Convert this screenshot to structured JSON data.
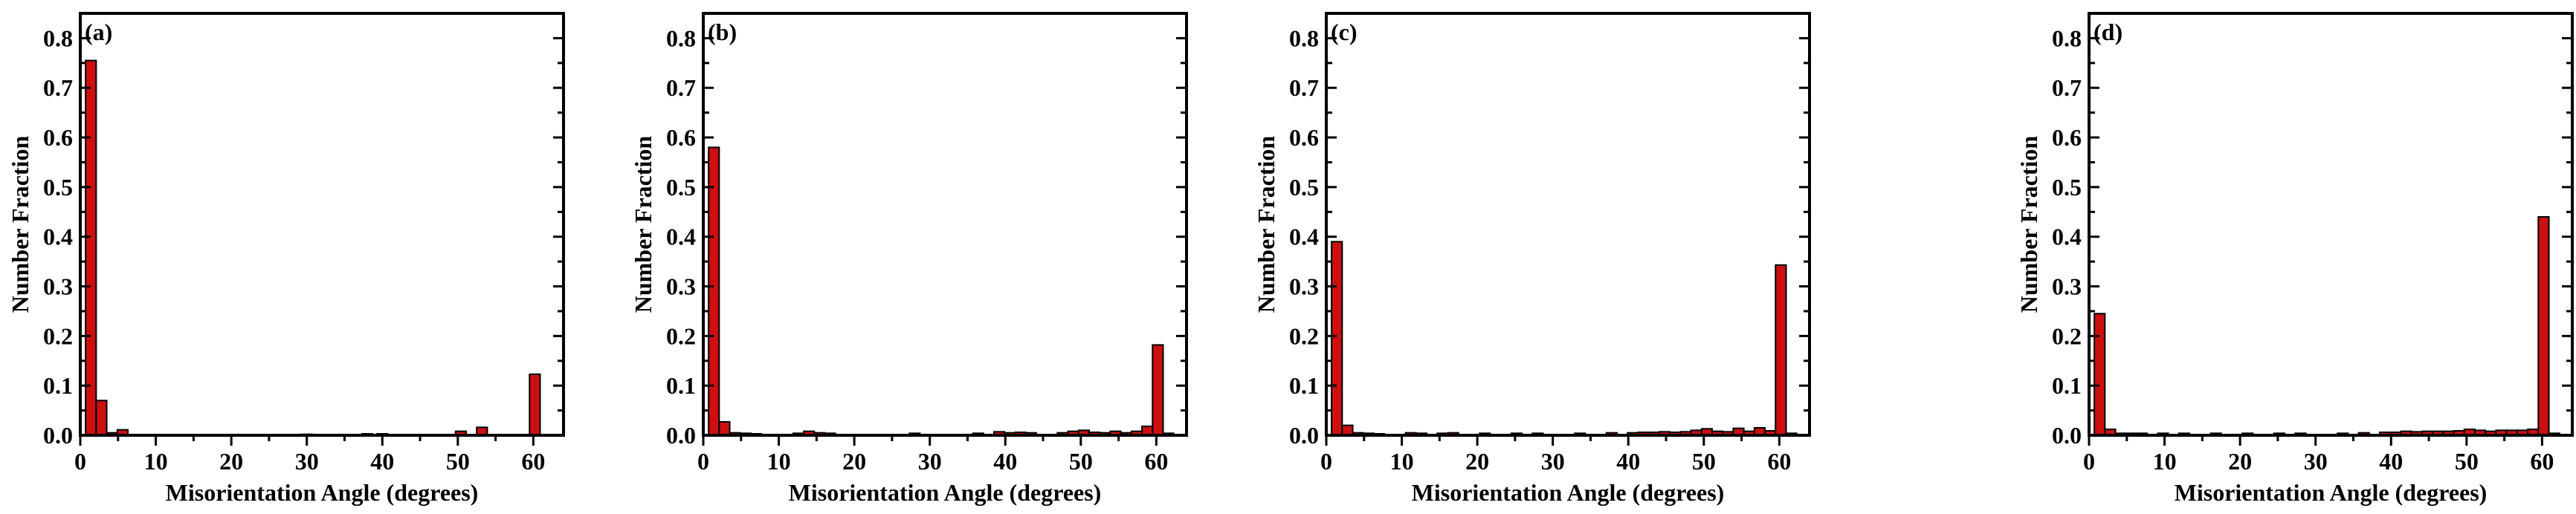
{
  "colors": {
    "bar_fill": "#cc1010",
    "bar_stroke": "#000000",
    "axis": "#000000"
  },
  "chart_data": [
    {
      "type": "bar",
      "panel_label": "(a)",
      "xlabel": "Misorientation Angle (degrees)",
      "ylabel": "Number Fraction",
      "xlim": [
        0,
        64
      ],
      "ylim": [
        0,
        0.85
      ],
      "xticks": [
        0,
        10,
        20,
        30,
        40,
        50,
        60
      ],
      "yticks": [
        0.0,
        0.1,
        0.2,
        0.3,
        0.4,
        0.5,
        0.6,
        0.7,
        0.8
      ],
      "ytick_labels": [
        "0.0",
        "0.1",
        "0.2",
        "0.3",
        "0.4",
        "0.5",
        "0.6",
        "0.7",
        "0.8"
      ],
      "bin_width": 1.4,
      "x": [
        1.4,
        2.8,
        4.2,
        5.6,
        30,
        38,
        40,
        50.4,
        53.2,
        60.2
      ],
      "values": [
        0.755,
        0.07,
        0.005,
        0.011,
        0.002,
        0.003,
        0.003,
        0.008,
        0.016,
        0.123
      ]
    },
    {
      "type": "bar",
      "panel_label": "(b)",
      "xlabel": "Misorientation Angle (degrees)",
      "ylabel": "Number Fraction",
      "xlim": [
        0,
        64
      ],
      "ylim": [
        0,
        0.85
      ],
      "xticks": [
        0,
        10,
        20,
        30,
        40,
        50,
        60
      ],
      "yticks": [
        0.0,
        0.1,
        0.2,
        0.3,
        0.4,
        0.5,
        0.6,
        0.7,
        0.8
      ],
      "ytick_labels": [
        "0.0",
        "0.1",
        "0.2",
        "0.3",
        "0.4",
        "0.5",
        "0.6",
        "0.7",
        "0.8"
      ],
      "bin_width": 1.4,
      "x": [
        1.4,
        2.8,
        4.2,
        5.6,
        7.0,
        12.6,
        14.0,
        15.4,
        16.8,
        28.0,
        36.4,
        39.2,
        40.6,
        42.0,
        43.4,
        47.6,
        49.0,
        50.4,
        51.8,
        53.2,
        54.6,
        56.0,
        57.4,
        58.8,
        60.2,
        61.6
      ],
      "values": [
        0.58,
        0.027,
        0.005,
        0.004,
        0.003,
        0.004,
        0.008,
        0.005,
        0.004,
        0.004,
        0.004,
        0.007,
        0.005,
        0.006,
        0.005,
        0.005,
        0.008,
        0.01,
        0.006,
        0.005,
        0.008,
        0.005,
        0.008,
        0.018,
        0.182,
        0.004
      ]
    },
    {
      "type": "bar",
      "panel_label": "(c)",
      "xlabel": "Misorientation Angle (degrees)",
      "ylabel": "Number Fraction",
      "xlim": [
        0,
        64
      ],
      "ylim": [
        0,
        0.85
      ],
      "xticks": [
        0,
        10,
        20,
        30,
        40,
        50,
        60
      ],
      "yticks": [
        0.0,
        0.1,
        0.2,
        0.3,
        0.4,
        0.5,
        0.6,
        0.7,
        0.8
      ],
      "ytick_labels": [
        "0.0",
        "0.1",
        "0.2",
        "0.3",
        "0.4",
        "0.5",
        "0.6",
        "0.7",
        "0.8"
      ],
      "bin_width": 1.4,
      "x": [
        1.4,
        2.8,
        4.2,
        5.6,
        7.0,
        11.2,
        12.6,
        15.4,
        16.8,
        21.0,
        25.2,
        28.0,
        33.6,
        37.8,
        40.6,
        42.0,
        43.4,
        44.8,
        46.2,
        47.6,
        49.0,
        50.4,
        51.8,
        53.2,
        54.6,
        56.0,
        57.4,
        58.8,
        60.2,
        61.6
      ],
      "values": [
        0.39,
        0.02,
        0.005,
        0.004,
        0.003,
        0.005,
        0.004,
        0.004,
        0.005,
        0.004,
        0.004,
        0.004,
        0.004,
        0.005,
        0.005,
        0.006,
        0.006,
        0.007,
        0.006,
        0.007,
        0.01,
        0.013,
        0.008,
        0.007,
        0.014,
        0.008,
        0.015,
        0.009,
        0.343,
        0.004
      ]
    },
    {
      "type": "bar",
      "panel_label": "(d)",
      "xlabel": "Misorientation Angle (degrees)",
      "ylabel": "Number Fraction",
      "xlim": [
        0,
        64
      ],
      "ylim": [
        0,
        0.85
      ],
      "xticks": [
        0,
        10,
        20,
        30,
        40,
        50,
        60
      ],
      "yticks": [
        0.0,
        0.1,
        0.2,
        0.3,
        0.4,
        0.5,
        0.6,
        0.7,
        0.8
      ],
      "ytick_labels": [
        "0.0",
        "0.1",
        "0.2",
        "0.3",
        "0.4",
        "0.5",
        "0.6",
        "0.7",
        "0.8"
      ],
      "bin_width": 1.4,
      "x": [
        1.4,
        2.8,
        4.2,
        5.6,
        7.0,
        9.8,
        12.6,
        16.8,
        21.0,
        25.2,
        28.0,
        33.6,
        36.4,
        39.2,
        40.6,
        42.0,
        43.4,
        44.8,
        46.2,
        47.6,
        49.0,
        50.4,
        51.8,
        53.2,
        54.6,
        56.0,
        57.4,
        58.8,
        60.2,
        61.6
      ],
      "values": [
        0.245,
        0.012,
        0.004,
        0.004,
        0.004,
        0.004,
        0.004,
        0.004,
        0.004,
        0.004,
        0.004,
        0.004,
        0.005,
        0.006,
        0.006,
        0.008,
        0.007,
        0.008,
        0.008,
        0.008,
        0.009,
        0.012,
        0.01,
        0.008,
        0.01,
        0.01,
        0.01,
        0.012,
        0.44,
        0.004
      ]
    }
  ]
}
